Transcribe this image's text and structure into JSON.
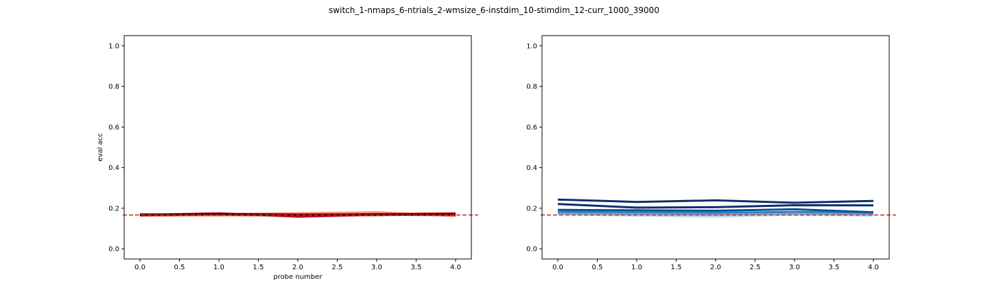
{
  "figure_title": "switch_1-nmaps_6-ntrials_2-wmsize_6-instdim_10-stimdim_12-curr_1000_39000",
  "colors": {
    "chance_line": "#d62728",
    "axes": "#000000"
  },
  "chart_data": [
    {
      "type": "line",
      "title": "",
      "xlabel": "probe number",
      "ylabel": "eval acc",
      "x": [
        0,
        1,
        2,
        3,
        4
      ],
      "xlim": [
        -0.2,
        4.2
      ],
      "ylim": [
        -0.05,
        1.05
      ],
      "xticks": [
        0.0,
        0.5,
        1.0,
        1.5,
        2.0,
        2.5,
        3.0,
        3.5,
        4.0
      ],
      "yticks": [
        0.0,
        0.2,
        0.4,
        0.6,
        0.8,
        1.0
      ],
      "xtick_labels": [
        "0.0",
        "0.5",
        "1.0",
        "1.5",
        "2.0",
        "2.5",
        "3.0",
        "3.5",
        "4.0"
      ],
      "ytick_labels": [
        "0.0",
        "0.2",
        "0.4",
        "0.6",
        "0.8",
        "1.0"
      ],
      "chance_level": 0.167,
      "series": [
        {
          "values": [
            0.163,
            0.162,
            0.168,
            0.17,
            0.167
          ],
          "color": "#fcbba1",
          "width": 3
        },
        {
          "values": [
            0.168,
            0.172,
            0.175,
            0.18,
            0.162
          ],
          "color": "#fc9272",
          "width": 3
        },
        {
          "values": [
            0.165,
            0.17,
            0.162,
            0.168,
            0.17
          ],
          "color": "#fb6a4a",
          "width": 3
        },
        {
          "values": [
            0.17,
            0.168,
            0.165,
            0.172,
            0.175
          ],
          "color": "#ef3b2c",
          "width": 3
        },
        {
          "values": [
            0.167,
            0.175,
            0.158,
            0.168,
            0.166
          ],
          "color": "#cb181d",
          "width": 3
        },
        {
          "values": [
            0.166,
            0.17,
            0.165,
            0.167,
            0.172
          ],
          "color": "#a50f15",
          "width": 3.5
        },
        {
          "values": [
            0.168,
            0.171,
            0.168,
            0.169,
            0.17
          ],
          "color": "#67000d",
          "width": 3.5
        }
      ],
      "mean_series": {
        "values": [
          0.167,
          0.171,
          0.166,
          0.17,
          0.17
        ],
        "color": "#000000",
        "dash": "2,3"
      }
    },
    {
      "type": "line",
      "title": "",
      "xlabel": "",
      "ylabel": "",
      "x": [
        0,
        1,
        2,
        3,
        4
      ],
      "xlim": [
        -0.2,
        4.2
      ],
      "ylim": [
        -0.05,
        1.05
      ],
      "xticks": [
        0.0,
        0.5,
        1.0,
        1.5,
        2.0,
        2.5,
        3.0,
        3.5,
        4.0
      ],
      "yticks": [
        0.0,
        0.2,
        0.4,
        0.6,
        0.8,
        1.0
      ],
      "xtick_labels": [
        "0.0",
        "0.5",
        "1.0",
        "1.5",
        "2.0",
        "2.5",
        "3.0",
        "3.5",
        "4.0"
      ],
      "ytick_labels": [
        "0.0",
        "0.2",
        "0.4",
        "0.6",
        "0.8",
        "1.0"
      ],
      "chance_level": 0.167,
      "series": [
        {
          "values": [
            0.17,
            0.163,
            0.158,
            0.168,
            0.163
          ],
          "color": "#c6dbef",
          "width": 3
        },
        {
          "values": [
            0.172,
            0.168,
            0.166,
            0.17,
            0.168
          ],
          "color": "#9ecae1",
          "width": 3
        },
        {
          "values": [
            0.176,
            0.172,
            0.17,
            0.175,
            0.172
          ],
          "color": "#6baed6",
          "width": 3
        },
        {
          "values": [
            0.182,
            0.18,
            0.178,
            0.182,
            0.178
          ],
          "color": "#3182bd",
          "width": 3
        },
        {
          "values": [
            0.192,
            0.19,
            0.188,
            0.195,
            0.18
          ],
          "color": "#08519c",
          "width": 3
        },
        {
          "values": [
            0.221,
            0.203,
            0.205,
            0.215,
            0.214
          ],
          "color": "#08306b",
          "width": 3
        },
        {
          "values": [
            0.243,
            0.231,
            0.239,
            0.227,
            0.236
          ],
          "color": "#08306b",
          "width": 3
        }
      ]
    }
  ]
}
